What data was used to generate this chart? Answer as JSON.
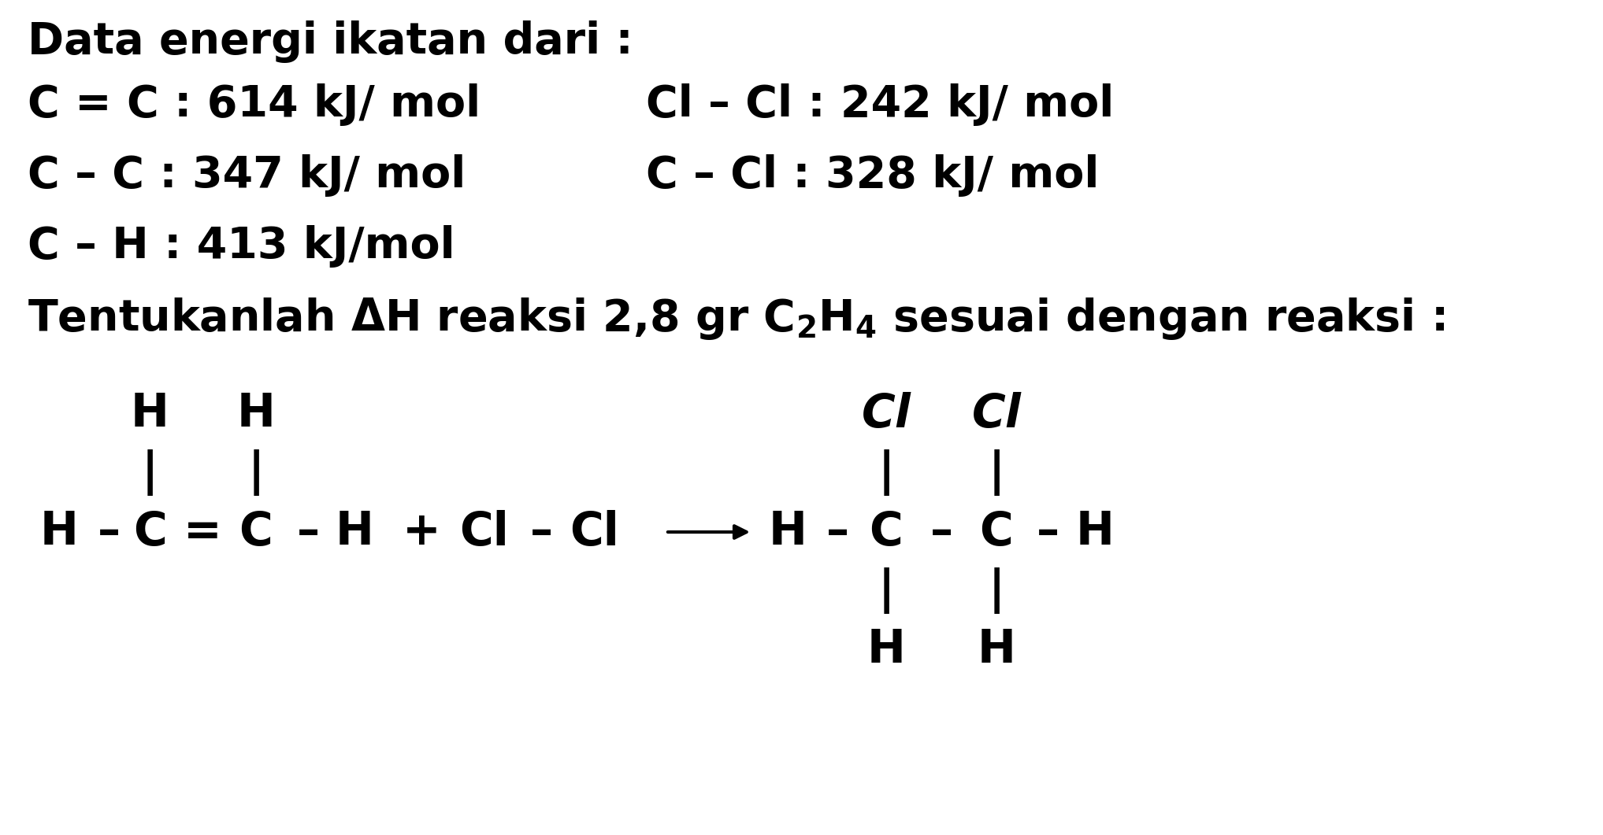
{
  "bg_color": "#ffffff",
  "text_color": "#000000",
  "title_line": "Data energi ikatan dari :",
  "line1_left": "C = C : 614 kJ/ mol",
  "line1_right": "Cl – Cl : 242 kJ/ mol",
  "line2_left": "C – C : 347 kJ/ mol",
  "line2_right": "C – Cl : 328 kJ/ mol",
  "line3": "C – H : 413 kJ/mol",
  "font_size_main": 40,
  "font_size_struct": 42,
  "font_bold": "bold",
  "font_family": "DejaVu Sans",
  "fig_width": 20.35,
  "fig_height": 10.61
}
